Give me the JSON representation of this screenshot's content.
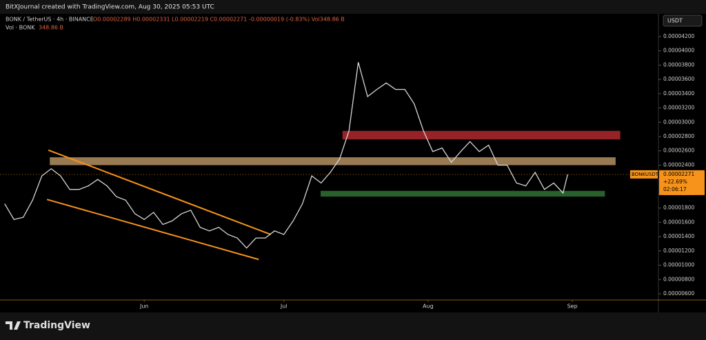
{
  "header": {
    "credit": "BitXJournal created with TradingView.com, Aug 30, 2025 05:53 UTC",
    "symbol": "BONK / TetherUS · 4h · BINANCE",
    "ohlc": "O0.00002289 H0.00002331 L0.00002219 C0.00002271 -0.00000019 (-0.83%) Vol348.86 B",
    "volume_label": "Vol · BONK",
    "volume_value": "348.86 B"
  },
  "footer": {
    "brand": "TradingView"
  },
  "chart_data": {
    "type": "line",
    "currency": "USDT",
    "xlim": [
      0,
      141.5
    ],
    "ylim": [
      5.13e-06,
      4.518e-05
    ],
    "xticks": [
      {
        "value": 31,
        "label": "Jun"
      },
      {
        "value": 61,
        "label": "Jul"
      },
      {
        "value": 92,
        "label": "Aug"
      },
      {
        "value": 123,
        "label": "Sep"
      }
    ],
    "yticks": [
      {
        "value": 6e-06,
        "label": "0.00000600"
      },
      {
        "value": 8e-06,
        "label": "0.00000800"
      },
      {
        "value": 1e-05,
        "label": "0.00001000"
      },
      {
        "value": 1.2e-05,
        "label": "0.00001200"
      },
      {
        "value": 1.4e-05,
        "label": "0.00001400"
      },
      {
        "value": 1.6e-05,
        "label": "0.00001600"
      },
      {
        "value": 1.8e-05,
        "label": "0.00001800"
      },
      {
        "value": 2e-05,
        "label": "0.00002000"
      },
      {
        "value": 2.2e-05,
        "label": "0.00002200"
      },
      {
        "value": 2.4e-05,
        "label": "0.00002400"
      },
      {
        "value": 2.6e-05,
        "label": "0.00002600"
      },
      {
        "value": 2.8e-05,
        "label": "0.00002800"
      },
      {
        "value": 3e-05,
        "label": "0.00003000"
      },
      {
        "value": 3.2e-05,
        "label": "0.00003200"
      },
      {
        "value": 3.4e-05,
        "label": "0.00003400"
      },
      {
        "value": 3.6e-05,
        "label": "0.00003600"
      },
      {
        "value": 3.8e-05,
        "label": "0.00003800"
      },
      {
        "value": 4e-05,
        "label": "0.00004000"
      },
      {
        "value": 4.2e-05,
        "label": "0.00004200"
      }
    ],
    "series": [
      {
        "color": "#d8d8d8",
        "x": [
          1,
          3,
          5,
          7,
          9,
          11,
          13,
          15,
          17,
          19,
          21,
          23,
          25,
          27,
          29,
          31,
          33,
          35,
          37,
          39,
          41,
          43,
          45,
          47,
          49,
          51,
          53,
          55,
          57,
          59,
          61,
          63,
          65,
          67,
          69,
          71,
          73,
          75,
          77,
          79,
          81,
          83,
          85,
          87,
          89,
          91,
          93,
          95,
          97,
          99,
          101,
          103,
          105,
          107,
          109,
          111,
          113,
          115,
          117,
          119,
          121,
          122
        ],
        "values": [
          1.86e-05,
          1.64e-05,
          1.67e-05,
          1.91e-05,
          2.25e-05,
          2.35e-05,
          2.25e-05,
          2.06e-05,
          2.06e-05,
          2.11e-05,
          2.2e-05,
          2.11e-05,
          1.96e-05,
          1.91e-05,
          1.72e-05,
          1.64e-05,
          1.74e-05,
          1.57e-05,
          1.62e-05,
          1.72e-05,
          1.77e-05,
          1.53e-05,
          1.48e-05,
          1.53e-05,
          1.43e-05,
          1.38e-05,
          1.24e-05,
          1.38e-05,
          1.38e-05,
          1.48e-05,
          1.43e-05,
          1.62e-05,
          1.86e-05,
          2.25e-05,
          2.15e-05,
          2.3e-05,
          2.49e-05,
          2.88e-05,
          3.84e-05,
          3.36e-05,
          3.46e-05,
          3.55e-05,
          3.46e-05,
          3.46e-05,
          3.26e-05,
          2.88e-05,
          2.59e-05,
          2.64e-05,
          2.44e-05,
          2.59e-05,
          2.73e-05,
          2.59e-05,
          2.68e-05,
          2.4e-05,
          2.4e-05,
          2.15e-05,
          2.11e-05,
          2.3e-05,
          2.06e-05,
          2.15e-05,
          2.01e-05,
          2.271e-05
        ]
      }
    ],
    "zones": [
      {
        "color": "#a5272c",
        "x0": 73.6,
        "x1": 133.3,
        "low": 2.76e-05,
        "high": 2.88e-05
      },
      {
        "color": "#a8875c",
        "x0": 10.7,
        "x1": 132.3,
        "low": 2.4e-05,
        "high": 2.51e-05
      },
      {
        "color": "#2e6b32",
        "x0": 68.9,
        "x1": 130,
        "low": 1.96e-05,
        "high": 2.04e-05
      }
    ],
    "trendlines": [
      {
        "color": "#f7931a",
        "x": [
          10.4,
          58.2
        ],
        "values": [
          2.61e-05,
          1.43e-05
        ]
      },
      {
        "color": "#f7931a",
        "x": [
          10.1,
          55.6
        ],
        "values": [
          1.92e-05,
          1.08e-05
        ]
      }
    ],
    "last_price": {
      "symbol": "BONKUSDT",
      "value": 2.271e-05,
      "label": "0.00002271",
      "change": "+22.69%",
      "countdown": "02:06:17",
      "color": "#f7931a"
    }
  }
}
